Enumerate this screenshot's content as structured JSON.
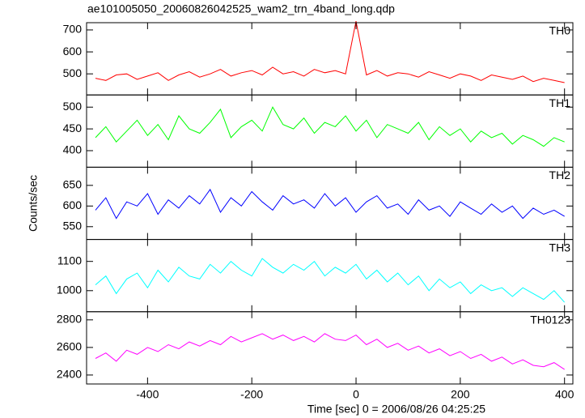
{
  "chart_data": {
    "type": "line",
    "title": "ae101005050_20060826042525_wam2_trn_4band_long.qdp",
    "xlabel": "Time [sec] 0 = 2006/08/26 04:25:25",
    "ylabel": "Counts/sec",
    "xlim": [
      -517,
      416
    ],
    "xticks": [
      -400,
      -200,
      0,
      200,
      400
    ],
    "x": [
      -500,
      -480,
      -460,
      -440,
      -420,
      -400,
      -380,
      -360,
      -340,
      -320,
      -300,
      -280,
      -260,
      -240,
      -220,
      -200,
      -180,
      -160,
      -140,
      -120,
      -100,
      -80,
      -60,
      -40,
      -20,
      0,
      20,
      40,
      60,
      80,
      100,
      120,
      140,
      160,
      180,
      200,
      220,
      240,
      260,
      280,
      300,
      320,
      340,
      360,
      380,
      400
    ],
    "series": [
      {
        "name": "TH0",
        "color": "#ff0000",
        "ylim": [
          404,
          733
        ],
        "yticks": [
          500,
          600,
          700
        ],
        "values": [
          480,
          470,
          495,
          500,
          475,
          490,
          505,
          470,
          495,
          510,
          485,
          500,
          520,
          490,
          505,
          515,
          495,
          530,
          500,
          510,
          490,
          520,
          505,
          515,
          500,
          740,
          495,
          515,
          490,
          505,
          500,
          485,
          510,
          495,
          480,
          500,
          490,
          470,
          495,
          485,
          475,
          490,
          465,
          480,
          470,
          460
        ]
      },
      {
        "name": "TH1",
        "color": "#00ff00",
        "ylim": [
          362,
          528
        ],
        "yticks": [
          400,
          450,
          500
        ],
        "values": [
          430,
          455,
          420,
          445,
          470,
          435,
          460,
          425,
          480,
          450,
          440,
          465,
          495,
          430,
          455,
          470,
          445,
          500,
          460,
          450,
          475,
          440,
          465,
          455,
          480,
          445,
          470,
          430,
          460,
          450,
          440,
          465,
          425,
          455,
          435,
          450,
          420,
          445,
          430,
          440,
          415,
          435,
          425,
          410,
          430,
          420
        ]
      },
      {
        "name": "TH2",
        "color": "#0000ff",
        "ylim": [
          519,
          694
        ],
        "yticks": [
          550,
          600,
          650
        ],
        "values": [
          590,
          620,
          570,
          610,
          600,
          630,
          580,
          615,
          595,
          625,
          605,
          640,
          585,
          620,
          600,
          635,
          610,
          590,
          625,
          605,
          615,
          595,
          630,
          600,
          620,
          585,
          610,
          625,
          595,
          605,
          580,
          615,
          590,
          600,
          575,
          610,
          595,
          580,
          605,
          585,
          600,
          570,
          595,
          580,
          590,
          575
        ]
      },
      {
        "name": "TH3",
        "color": "#00ffff",
        "ylim": [
          928,
          1175
        ],
        "yticks": [
          1000,
          1100
        ],
        "values": [
          1020,
          1050,
          990,
          1040,
          1060,
          1010,
          1070,
          1030,
          1080,
          1050,
          1040,
          1090,
          1060,
          1100,
          1070,
          1050,
          1110,
          1080,
          1060,
          1090,
          1070,
          1100,
          1050,
          1080,
          1060,
          1090,
          1040,
          1070,
          1030,
          1060,
          1020,
          1050,
          1000,
          1040,
          1010,
          1030,
          990,
          1020,
          1000,
          1010,
          980,
          1010,
          990,
          970,
          1000,
          960
        ]
      },
      {
        "name": "TH0123",
        "color": "#ff00ff",
        "ylim": [
          2335,
          2859
        ],
        "yticks": [
          2400,
          2600,
          2800
        ],
        "values": [
          2520,
          2560,
          2500,
          2580,
          2550,
          2600,
          2570,
          2620,
          2590,
          2640,
          2610,
          2650,
          2620,
          2680,
          2640,
          2670,
          2700,
          2660,
          2690,
          2650,
          2680,
          2640,
          2700,
          2660,
          2650,
          2690,
          2620,
          2660,
          2600,
          2630,
          2580,
          2610,
          2560,
          2590,
          2540,
          2570,
          2520,
          2550,
          2500,
          2530,
          2480,
          2510,
          2470,
          2460,
          2490,
          2440
        ]
      }
    ]
  }
}
